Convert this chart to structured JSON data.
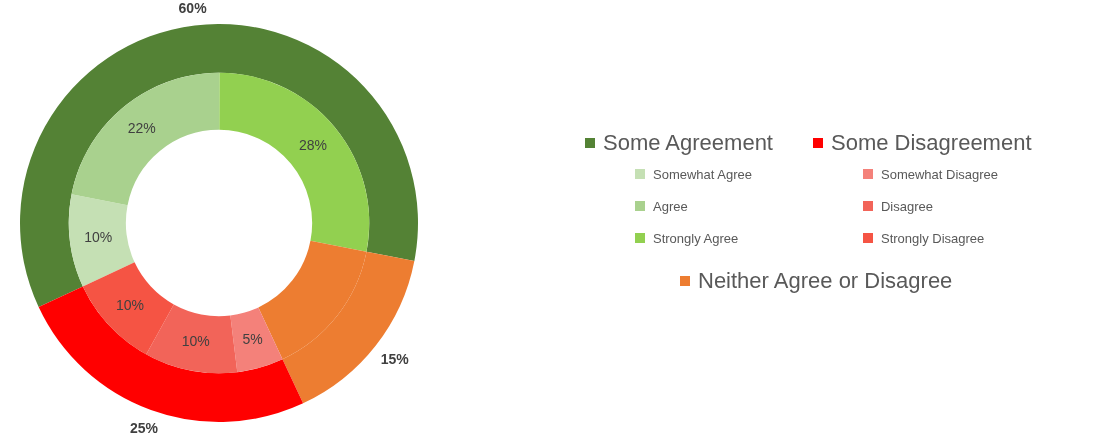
{
  "chart_data": [
    {
      "type": "donut",
      "legend": "right",
      "categories": [
        "Some Agreement",
        "Neither Agree or Disagree",
        "Some Disagreement"
      ],
      "values": [
        60,
        15,
        25
      ],
      "colors": [
        "#548235",
        "#ed7d31",
        "#ff0000"
      ],
      "value_labels": [
        "60%",
        "15%",
        "25%"
      ]
    },
    {
      "type": "donut",
      "legend": "right",
      "categories": [
        "Somewhat Agree",
        "Agree",
        "Strongly Agree",
        null,
        "Somewhat Disagree",
        "Disagree",
        "Strongly Disagree"
      ],
      "values": [
        10,
        22,
        28,
        15,
        5,
        10,
        10
      ],
      "colors": [
        "#c5e0b4",
        "#a9d18e",
        "#92d050",
        "#ed7d31",
        "#f4817a",
        "#f26459",
        "#f55444"
      ],
      "value_labels": [
        "10%",
        "22%",
        "28%",
        null,
        "5%",
        "10%",
        "10%"
      ]
    }
  ]
}
